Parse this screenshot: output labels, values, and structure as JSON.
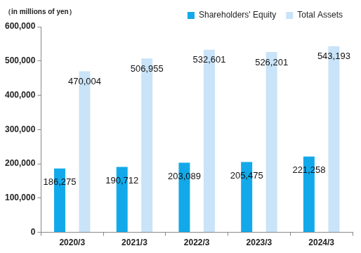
{
  "chart_data": {
    "type": "bar",
    "y_label": "（in millions of yen）",
    "categories": [
      "2020/3",
      "2021/3",
      "2022/3",
      "2023/3",
      "2024/3"
    ],
    "series": [
      {
        "name": "Shareholders' Equity",
        "color": "#12a9ea",
        "values": [
          186275,
          190712,
          203089,
          205475,
          221258
        ],
        "value_labels": [
          "186,275",
          "190,712",
          "203,089",
          "205,475",
          "221,258"
        ]
      },
      {
        "name": "Total Assets",
        "color": "#c9e3f8",
        "values": [
          470004,
          506955,
          532601,
          526201,
          543193
        ],
        "value_labels": [
          "470,004",
          "506,955",
          "532,601",
          "526,201",
          "543,193"
        ]
      }
    ],
    "ylim": [
      0,
      600000
    ],
    "yticks": [
      0,
      {
        "value": 100000,
        "label": "100,000"
      },
      {
        "value": 200000,
        "label": "200,000"
      },
      {
        "value": 300000,
        "label": "300,000"
      },
      {
        "value": 400000,
        "label": "400,000"
      },
      {
        "value": 500000,
        "label": "500,000"
      },
      {
        "value": 600000,
        "label": "600,000"
      }
    ],
    "grid": false,
    "legend": "top-right",
    "data_labels": true
  }
}
